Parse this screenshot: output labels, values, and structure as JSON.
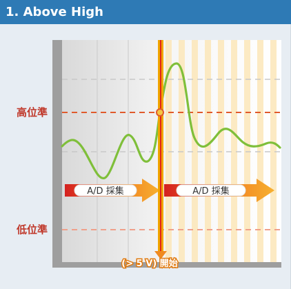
{
  "title": "1. Above High",
  "levels": {
    "high_label": "高位準",
    "low_label": "低位準"
  },
  "ad_labels": [
    "A/D 採集",
    "A/D 採集"
  ],
  "trigger_label": "(> 5 V) 開始",
  "colors": {
    "header": "#2e7ab5",
    "high_line": "#e05a2b",
    "low_line": "#f0a08a",
    "signal": "#7fbf3a",
    "trigger": "#f0a500",
    "arrow": "#f08a20"
  }
}
